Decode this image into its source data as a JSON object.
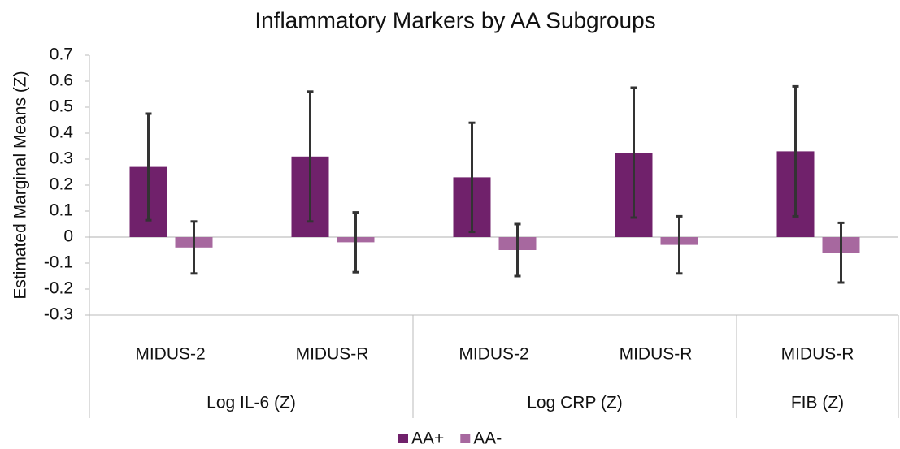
{
  "chart_data": {
    "type": "bar",
    "title": "Inflammatory Markers by AA Subgroups",
    "y_label": "Estimated Marginal Means (Z)",
    "categories": [
      "MIDUS-2",
      "MIDUS-R",
      "MIDUS-2",
      "MIDUS-R",
      "MIDUS-R"
    ],
    "category_groups": [
      "Log IL-6 (Z)",
      "Log IL-6 (Z)",
      "Log CRP (Z)",
      "Log CRP (Z)",
      "FIB (Z)"
    ],
    "series": [
      {
        "name": "AA+",
        "color": "#70216b",
        "values": [
          0.27,
          0.31,
          0.23,
          0.325,
          0.33
        ],
        "errors": [
          0.205,
          0.25,
          0.21,
          0.25,
          0.25
        ]
      },
      {
        "name": "AA-",
        "color": "#a7689f",
        "values": [
          -0.04,
          -0.02,
          -0.05,
          -0.03,
          -0.06
        ],
        "errors": [
          0.1,
          0.115,
          0.1,
          0.11,
          0.115
        ]
      }
    ],
    "ylim": [
      -0.3,
      0.7
    ],
    "yticks": [
      -0.3,
      -0.2,
      -0.1,
      0,
      0.1,
      0.2,
      0.3,
      0.4,
      0.5,
      0.6,
      0.7
    ],
    "legend": "bottom"
  }
}
